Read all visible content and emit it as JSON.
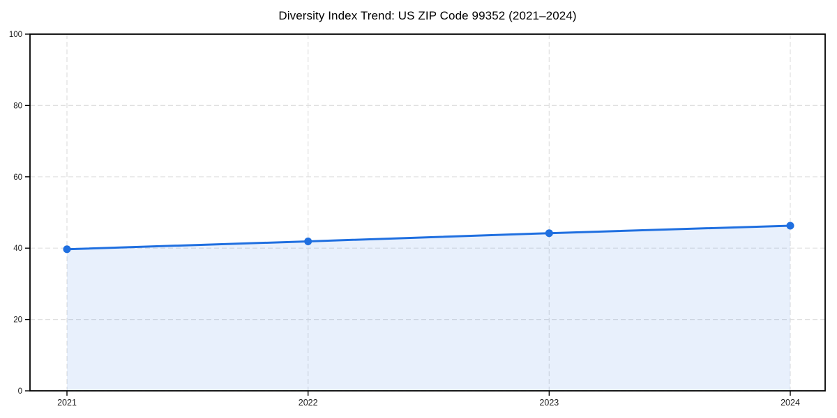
{
  "chart_data": {
    "type": "area",
    "title": "Diversity Index Trend: US ZIP Code 99352 (2021–2024)",
    "x": [
      "2021",
      "2022",
      "2023",
      "2024"
    ],
    "series": [
      {
        "name": "Diversity Index",
        "values": [
          39.7,
          41.9,
          44.2,
          46.3
        ]
      }
    ],
    "xlabel": "",
    "ylabel": "",
    "ylim": [
      0,
      100
    ],
    "yticks": [
      0,
      20,
      40,
      60,
      80,
      100
    ],
    "grid": "dashed-both-axes",
    "legend": "none",
    "marker": "circle",
    "colors": {
      "line": "#1f6fe0",
      "marker": "#1f6fe0",
      "area_fill": "rgba(31,111,224,0.10)",
      "grid": "#e0e0e0",
      "spine": "#000000",
      "tick": "#000000",
      "tick_label": "#1c1c1c",
      "title": "#000000"
    }
  }
}
